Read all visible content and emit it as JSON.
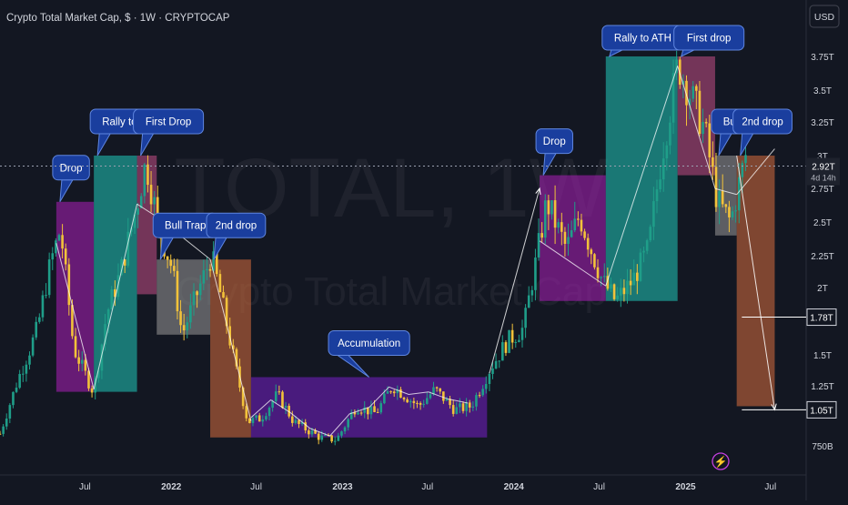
{
  "header": {
    "symbol_line": "Crypto Total Market Cap, $ · 1W · CRYPTOCAP",
    "currency_button": "USD"
  },
  "watermark": {
    "ticker": "TOTAL, 1W",
    "name": "Crypto Total Market Cap"
  },
  "colors": {
    "background": "#131722",
    "up": "#1f9e89",
    "down": "#f2c23a",
    "drop_box": "#9b1fa8",
    "rally_box": "#1fb5a8",
    "first_drop_box": "#b0487a",
    "bull_trap_box": "#8a8a8a",
    "second_drop_box": "#c1643a",
    "accumulation_box": "#6a1fb5",
    "callout_fill": "#1a3e9e",
    "callout_border": "#5f86e0",
    "lightning_badge": "#c43fe0"
  },
  "chart_data": {
    "type": "candlestick",
    "title": "Crypto Total Market Cap, $ · 1W · CRYPTOCAP",
    "x_axis": {
      "ticks": [
        "Jul",
        "2022",
        "Jul",
        "2023",
        "Jul",
        "2024",
        "Jul",
        "2025",
        "Jul"
      ],
      "tick_dates": [
        "2021-07-01",
        "2022-01-01",
        "2022-07-01",
        "2023-01-01",
        "2023-07-01",
        "2024-01-01",
        "2024-07-01",
        "2025-01-01",
        "2025-07-01"
      ],
      "range": [
        "2021-01-01",
        "2025-09-15"
      ]
    },
    "y_axis": {
      "unit": "USD",
      "ticks": [
        "750B",
        "1.25T",
        "1.5T",
        "2T",
        "2.25T",
        "2.5T",
        "2.75T",
        "3T",
        "3.25T",
        "3.5T",
        "3.75T"
      ],
      "tick_values": [
        0.75,
        1.25,
        1.5,
        2.0,
        2.25,
        2.5,
        2.75,
        3.0,
        3.25,
        3.5,
        3.75
      ],
      "range": [
        0.72,
        3.93
      ]
    },
    "price_path": [
      [
        "2021-01-01",
        0.85
      ],
      [
        "2021-02-08",
        1.3
      ],
      [
        "2021-03-22",
        1.7
      ],
      [
        "2021-04-19",
        2.2
      ],
      [
        "2021-05-10",
        2.45
      ],
      [
        "2021-06-07",
        1.55
      ],
      [
        "2021-07-19",
        1.2
      ],
      [
        "2021-08-16",
        1.8
      ],
      [
        "2021-09-13",
        2.1
      ],
      [
        "2021-10-18",
        2.6
      ],
      [
        "2021-11-08",
        2.95
      ],
      [
        "2021-12-06",
        2.45
      ],
      [
        "2022-01-03",
        2.15
      ],
      [
        "2022-01-24",
        1.65
      ],
      [
        "2022-03-28",
        2.25
      ],
      [
        "2022-04-25",
        1.8
      ],
      [
        "2022-06-13",
        0.95
      ],
      [
        "2022-07-11",
        0.98
      ],
      [
        "2022-08-15",
        1.18
      ],
      [
        "2022-09-19",
        0.95
      ],
      [
        "2022-11-14",
        0.82
      ],
      [
        "2022-12-19",
        0.8
      ],
      [
        "2023-01-30",
        1.08
      ],
      [
        "2023-03-13",
        1.02
      ],
      [
        "2023-04-17",
        1.25
      ],
      [
        "2023-06-12",
        1.08
      ],
      [
        "2023-07-17",
        1.22
      ],
      [
        "2023-08-28",
        1.05
      ],
      [
        "2023-10-02",
        1.08
      ],
      [
        "2023-11-13",
        1.4
      ],
      [
        "2023-12-18",
        1.6
      ],
      [
        "2024-01-22",
        1.7
      ],
      [
        "2024-03-11",
        2.65
      ],
      [
        "2024-04-22",
        2.3
      ],
      [
        "2024-05-20",
        2.55
      ],
      [
        "2024-07-08",
        2.05
      ],
      [
        "2024-08-05",
        1.9
      ],
      [
        "2024-09-09",
        2.05
      ],
      [
        "2024-10-14",
        2.3
      ],
      [
        "2024-11-11",
        3.0
      ],
      [
        "2024-12-16",
        3.7
      ],
      [
        "2025-01-13",
        3.45
      ],
      [
        "2025-02-10",
        3.2
      ],
      [
        "2025-03-10",
        2.65
      ],
      [
        "2025-04-07",
        2.5
      ],
      [
        "2025-05-12",
        3.05
      ]
    ],
    "phases": [
      {
        "label": "Drop",
        "start": "2021-05-01",
        "end": "2021-07-20",
        "low": 1.2,
        "high": 2.65,
        "box": "drop_box"
      },
      {
        "label": "Rally to ATH",
        "start": "2021-07-20",
        "end": "2021-10-20",
        "low": 1.2,
        "high": 3.0,
        "box": "rally_box"
      },
      {
        "label": "First Drop",
        "start": "2021-10-20",
        "end": "2021-12-01",
        "low": 1.95,
        "high": 3.0,
        "box": "first_drop_box"
      },
      {
        "label": "Bull Trap",
        "start": "2021-12-01",
        "end": "2022-03-25",
        "low": 1.65,
        "high": 2.22,
        "box": "bull_trap_box"
      },
      {
        "label": "2nd drop",
        "start": "2022-03-25",
        "end": "2022-06-20",
        "low": 0.82,
        "high": 2.22,
        "box": "second_drop_box"
      },
      {
        "label": "Accumulation",
        "start": "2022-06-20",
        "end": "2023-11-05",
        "low": 0.82,
        "high": 1.32,
        "box": "accumulation_box"
      },
      {
        "label": "Drop",
        "start": "2024-02-25",
        "end": "2024-07-15",
        "low": 1.9,
        "high": 2.85,
        "box": "drop_box"
      },
      {
        "label": "Rally to ATH",
        "start": "2024-07-15",
        "end": "2024-12-15",
        "low": 1.9,
        "high": 3.75,
        "box": "rally_box"
      },
      {
        "label": "First drop",
        "start": "2024-12-15",
        "end": "2025-03-05",
        "low": 2.85,
        "high": 3.75,
        "box": "first_drop_box"
      },
      {
        "label": "Bull Trap",
        "start": "2025-03-05",
        "end": "2025-04-20",
        "low": 2.4,
        "high": 3.0,
        "box": "bull_trap_box"
      },
      {
        "label": "2nd drop",
        "start": "2025-04-20",
        "end": "2025-07-10",
        "low": 1.08,
        "high": 3.0,
        "box": "second_drop_box"
      }
    ],
    "projection": {
      "from": [
        "2025-04-20",
        3.0
      ],
      "to": [
        "2025-07-10",
        1.05
      ]
    },
    "trend_arrow": {
      "from": [
        "2023-11-10",
        1.35
      ],
      "to": [
        "2024-02-25",
        2.75
      ]
    },
    "price_labels": [
      {
        "text": "2.92T",
        "value": 2.92,
        "subtext": "4d 14h",
        "style": "current"
      },
      {
        "text": "1.78T",
        "value": 1.78,
        "style": "level"
      },
      {
        "text": "1.05T",
        "value": 1.05,
        "style": "level"
      }
    ]
  }
}
